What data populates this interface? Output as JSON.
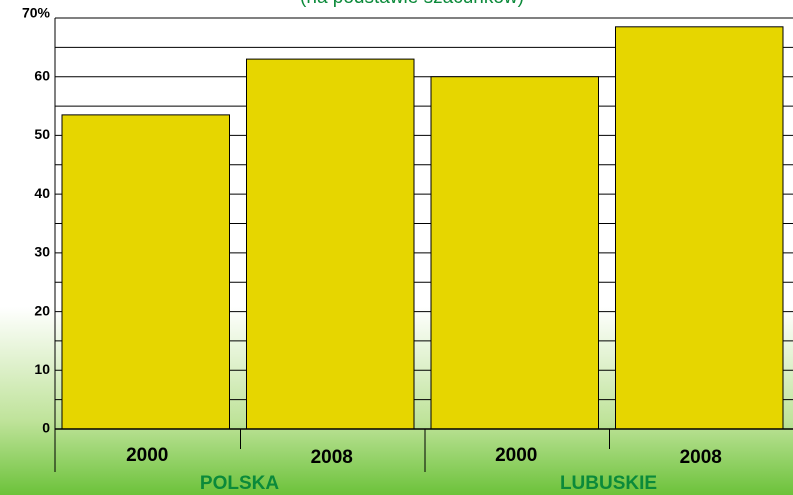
{
  "chart_data": {
    "type": "bar",
    "subtitle": "(na podstawie szacunków)",
    "categories": [
      "2000",
      "2008",
      "2000",
      "2008"
    ],
    "groups": [
      "POLSKA",
      "LUBUSKIE"
    ],
    "values": [
      53.5,
      63,
      60,
      68.5
    ],
    "color": "#e6d600",
    "ylim": [
      0,
      70
    ],
    "yticks": [
      0,
      10,
      20,
      30,
      40,
      50,
      60,
      {
        "value": 70,
        "label": "70%"
      }
    ],
    "minor_yticks": [
      5,
      15,
      25,
      35,
      45,
      55,
      65
    ],
    "grid": true
  }
}
